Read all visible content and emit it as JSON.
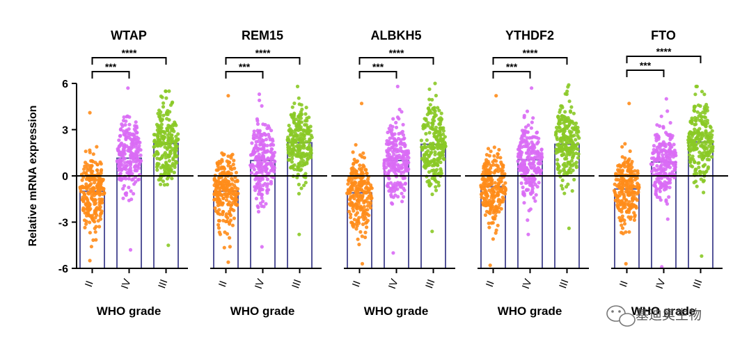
{
  "chart_data": {
    "type": "bar",
    "ylabel": "Relative mRNA expression",
    "ylim": [
      -6,
      6
    ],
    "yticks": [
      -6,
      -3,
      0,
      3,
      6
    ],
    "categories": [
      "II",
      "IV",
      "III"
    ],
    "category_colors": [
      "#ff8c1a",
      "#d96cf5",
      "#8ac926"
    ],
    "bar_outline_color": "#555599",
    "panels": [
      {
        "title": "WTAP",
        "xlabel": "WHO grade",
        "means": [
          -1.0,
          1.15,
          2.1
        ],
        "points_range": [
          [
            -5.5,
            4.1
          ],
          [
            -4.8,
            5.7
          ],
          [
            -4.5,
            5.5
          ]
        ],
        "comparisons": [
          {
            "pair": [
              "II",
              "IV"
            ],
            "label": "***"
          },
          {
            "pair": [
              "II",
              "III"
            ],
            "label": "****"
          }
        ]
      },
      {
        "title": "REM15",
        "xlabel": "WHO grade",
        "means": [
          -1.0,
          1.0,
          2.15
        ],
        "points_range": [
          [
            -5.6,
            5.2
          ],
          [
            -4.6,
            5.3
          ],
          [
            -3.8,
            5.8
          ]
        ],
        "comparisons": [
          {
            "pair": [
              "II",
              "IV"
            ],
            "label": "***"
          },
          {
            "pair": [
              "II",
              "III"
            ],
            "label": "****"
          }
        ]
      },
      {
        "title": "ALBKH5",
        "xlabel": "WHO grade",
        "means": [
          -1.1,
          1.0,
          2.05
        ],
        "points_range": [
          [
            -5.7,
            4.7
          ],
          [
            -5.0,
            5.8
          ],
          [
            -3.6,
            6.0
          ]
        ],
        "comparisons": [
          {
            "pair": [
              "II",
              "IV"
            ],
            "label": "***"
          },
          {
            "pair": [
              "II",
              "III"
            ],
            "label": "****"
          }
        ]
      },
      {
        "title": "YTHDF2",
        "xlabel": "WHO grade",
        "means": [
          -0.7,
          1.05,
          2.05
        ],
        "points_range": [
          [
            -5.8,
            5.2
          ],
          [
            -3.8,
            5.7
          ],
          [
            -3.4,
            5.9
          ]
        ],
        "comparisons": [
          {
            "pair": [
              "II",
              "IV"
            ],
            "label": "***"
          },
          {
            "pair": [
              "II",
              "III"
            ],
            "label": "****"
          }
        ]
      },
      {
        "title": "FTO",
        "xlabel": "WHO grade",
        "means": [
          -0.85,
          0.9,
          2.2
        ],
        "points_range": [
          [
            -5.7,
            4.7
          ],
          [
            -5.9,
            5.0
          ],
          [
            -5.2,
            5.8
          ]
        ],
        "comparisons": [
          {
            "pair": [
              "II",
              "IV"
            ],
            "label": "***"
          },
          {
            "pair": [
              "II",
              "III"
            ],
            "label": "****"
          }
        ]
      }
    ]
  },
  "watermark": {
    "text": "基迪奥生物",
    "icon": "wechat-icon"
  }
}
